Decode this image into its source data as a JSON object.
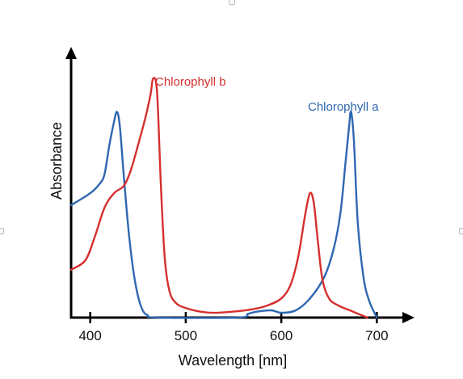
{
  "chart_data": {
    "type": "line",
    "title": "",
    "xlabel": "Wavelength [nm]",
    "ylabel": "Absorbance",
    "xlim": [
      380,
      720
    ],
    "ylim": [
      0,
      1
    ],
    "xticks": [
      400,
      500,
      600,
      700
    ],
    "grid": false,
    "legend": "inline",
    "series": [
      {
        "name": "Chlorophyll a",
        "color": "#2e67b1",
        "points": [
          [
            380,
            0.47
          ],
          [
            400,
            0.52
          ],
          [
            410,
            0.56
          ],
          [
            415,
            0.6
          ],
          [
            420,
            0.72
          ],
          [
            425,
            0.82
          ],
          [
            428,
            0.86
          ],
          [
            431,
            0.8
          ],
          [
            435,
            0.6
          ],
          [
            440,
            0.37
          ],
          [
            445,
            0.2
          ],
          [
            450,
            0.09
          ],
          [
            455,
            0.03
          ],
          [
            460,
            0.01
          ],
          [
            470,
            0.0
          ],
          [
            555,
            0.0
          ],
          [
            565,
            0.015
          ],
          [
            575,
            0.025
          ],
          [
            590,
            0.03
          ],
          [
            600,
            0.02
          ],
          [
            615,
            0.03
          ],
          [
            630,
            0.08
          ],
          [
            645,
            0.17
          ],
          [
            655,
            0.29
          ],
          [
            662,
            0.44
          ],
          [
            667,
            0.64
          ],
          [
            671,
            0.8
          ],
          [
            673,
            0.86
          ],
          [
            676,
            0.74
          ],
          [
            680,
            0.4
          ],
          [
            686,
            0.17
          ],
          [
            692,
            0.07
          ],
          [
            700,
            0.0
          ]
        ]
      },
      {
        "name": "Chlorophyll b",
        "color": "#d4302e",
        "points": [
          [
            380,
            0.2
          ],
          [
            395,
            0.24
          ],
          [
            405,
            0.34
          ],
          [
            415,
            0.46
          ],
          [
            425,
            0.52
          ],
          [
            435,
            0.55
          ],
          [
            442,
            0.61
          ],
          [
            450,
            0.72
          ],
          [
            458,
            0.84
          ],
          [
            463,
            0.93
          ],
          [
            466,
            1.0
          ],
          [
            470,
            0.94
          ],
          [
            474,
            0.55
          ],
          [
            478,
            0.25
          ],
          [
            483,
            0.11
          ],
          [
            490,
            0.06
          ],
          [
            500,
            0.04
          ],
          [
            515,
            0.025
          ],
          [
            530,
            0.02
          ],
          [
            550,
            0.025
          ],
          [
            570,
            0.035
          ],
          [
            585,
            0.05
          ],
          [
            600,
            0.08
          ],
          [
            610,
            0.14
          ],
          [
            618,
            0.26
          ],
          [
            625,
            0.43
          ],
          [
            630,
            0.52
          ],
          [
            634,
            0.48
          ],
          [
            638,
            0.33
          ],
          [
            643,
            0.16
          ],
          [
            650,
            0.08
          ],
          [
            660,
            0.05
          ],
          [
            675,
            0.025
          ],
          [
            690,
            0.0
          ]
        ]
      }
    ]
  }
}
